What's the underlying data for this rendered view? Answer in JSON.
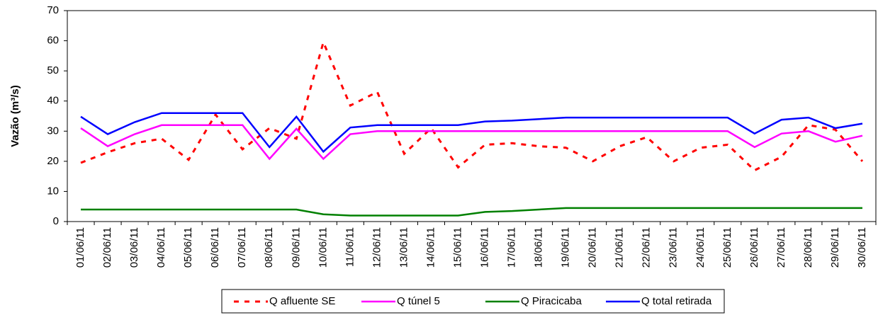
{
  "chart_data": {
    "type": "line",
    "y_label": "Vazão (m³/s)",
    "categories": [
      "01/06/11",
      "02/06/11",
      "03/06/11",
      "04/06/11",
      "05/06/11",
      "06/06/11",
      "07/06/11",
      "08/06/11",
      "09/06/11",
      "10/06/11",
      "11/06/11",
      "12/06/11",
      "13/06/11",
      "14/06/11",
      "15/06/11",
      "16/06/11",
      "17/06/11",
      "18/06/11",
      "19/06/11",
      "20/06/11",
      "21/06/11",
      "22/06/11",
      "23/06/11",
      "24/06/11",
      "25/06/11",
      "26/06/11",
      "27/06/11",
      "28/06/11",
      "29/06/11",
      "30/06/11"
    ],
    "series": [
      {
        "name": "Q afluente SE",
        "color": "#ff0000",
        "dashed": true,
        "values": [
          19.5,
          23,
          26,
          27.5,
          20.5,
          35.5,
          24,
          31,
          27.5,
          59.5,
          38.5,
          43,
          22.5,
          31,
          18,
          25.5,
          26,
          25,
          24.5,
          20,
          25,
          28,
          20,
          24.5,
          25.5,
          17,
          21.5,
          32,
          30.5,
          20
        ]
      },
      {
        "name": "Q túnel 5",
        "color": "#ff00ff",
        "dashed": false,
        "values": [
          31,
          25,
          29,
          32,
          32,
          32,
          32,
          20.8,
          30.8,
          20.8,
          29,
          30,
          30,
          30,
          30,
          30,
          30,
          30,
          30,
          30,
          30,
          30,
          30,
          30,
          30,
          24.7,
          29.2,
          30,
          26.5,
          28.5
        ]
      },
      {
        "name": "Q Piracicaba",
        "color": "#008000",
        "dashed": false,
        "values": [
          4,
          4,
          4,
          4,
          4,
          4,
          4,
          4,
          4,
          2.4,
          2,
          2,
          2,
          2,
          2,
          3.2,
          3.5,
          4,
          4.5,
          4.5,
          4.5,
          4.5,
          4.5,
          4.5,
          4.5,
          4.5,
          4.5,
          4.5,
          4.5,
          4.5
        ]
      },
      {
        "name": "Q total retirada",
        "color": "#0000ff",
        "dashed": false,
        "values": [
          34.8,
          29,
          33,
          36,
          36,
          36,
          36,
          24.7,
          34.8,
          23.2,
          31.2,
          32,
          32,
          32,
          32,
          33.2,
          33.5,
          34,
          34.5,
          34.5,
          34.5,
          34.5,
          34.5,
          34.5,
          34.5,
          29.2,
          33.8,
          34.5,
          31,
          32.5
        ]
      }
    ],
    "ylim": [
      0,
      70
    ],
    "yticks": [
      0,
      10,
      20,
      30,
      40,
      50,
      60,
      70
    ],
    "grid": false
  }
}
